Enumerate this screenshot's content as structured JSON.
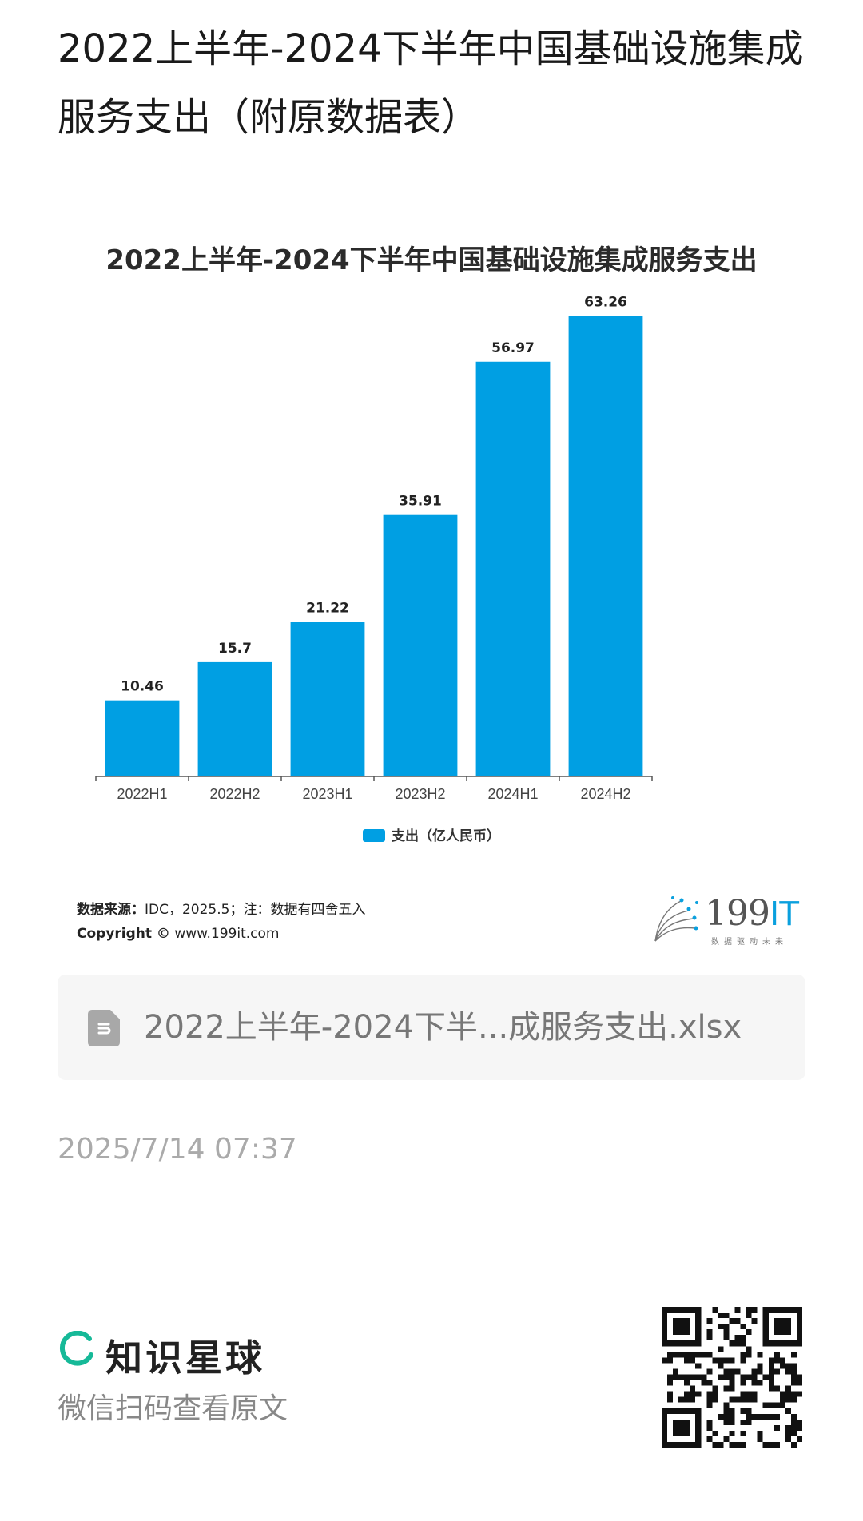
{
  "post": {
    "title": "2022上半年-2024下半年中国基础设施集成服务支出（附原数据表）"
  },
  "chart_data": {
    "type": "bar",
    "title": "2022上半年-2024下半年中国基础设施集成服务支出",
    "categories": [
      "2022H1",
      "2022H2",
      "2023H1",
      "2023H2",
      "2024H1",
      "2024H2"
    ],
    "series": [
      {
        "name": "支出（亿人民币）",
        "values": [
          10.46,
          15.7,
          21.22,
          35.91,
          56.97,
          63.26
        ],
        "labels": [
          "10.46",
          "15.7",
          "21.22",
          "35.91",
          "56.97",
          "63.26"
        ]
      }
    ],
    "ylim": [
      0,
      70
    ],
    "grid": false,
    "legend": "bottom",
    "bar_color": "#009fe3"
  },
  "source": {
    "label": "数据来源：",
    "text": "IDC，2025.5；注：数据有四舍五入",
    "copyright_label": "Copyright ©",
    "copyright_text": " www.199it.com"
  },
  "brand": {
    "name_digits": "199",
    "name_letters": "IT",
    "slogan": "数据驱动未来"
  },
  "file": {
    "icon": "spreadsheet-file-icon",
    "name": "2022上半年-2024下半...成服务支出.xlsx"
  },
  "timestamp": "2025/7/14 07:37",
  "footer": {
    "app_name": "知识星球",
    "scan_hint": "微信扫码查看原文",
    "accent": "#16b998"
  }
}
